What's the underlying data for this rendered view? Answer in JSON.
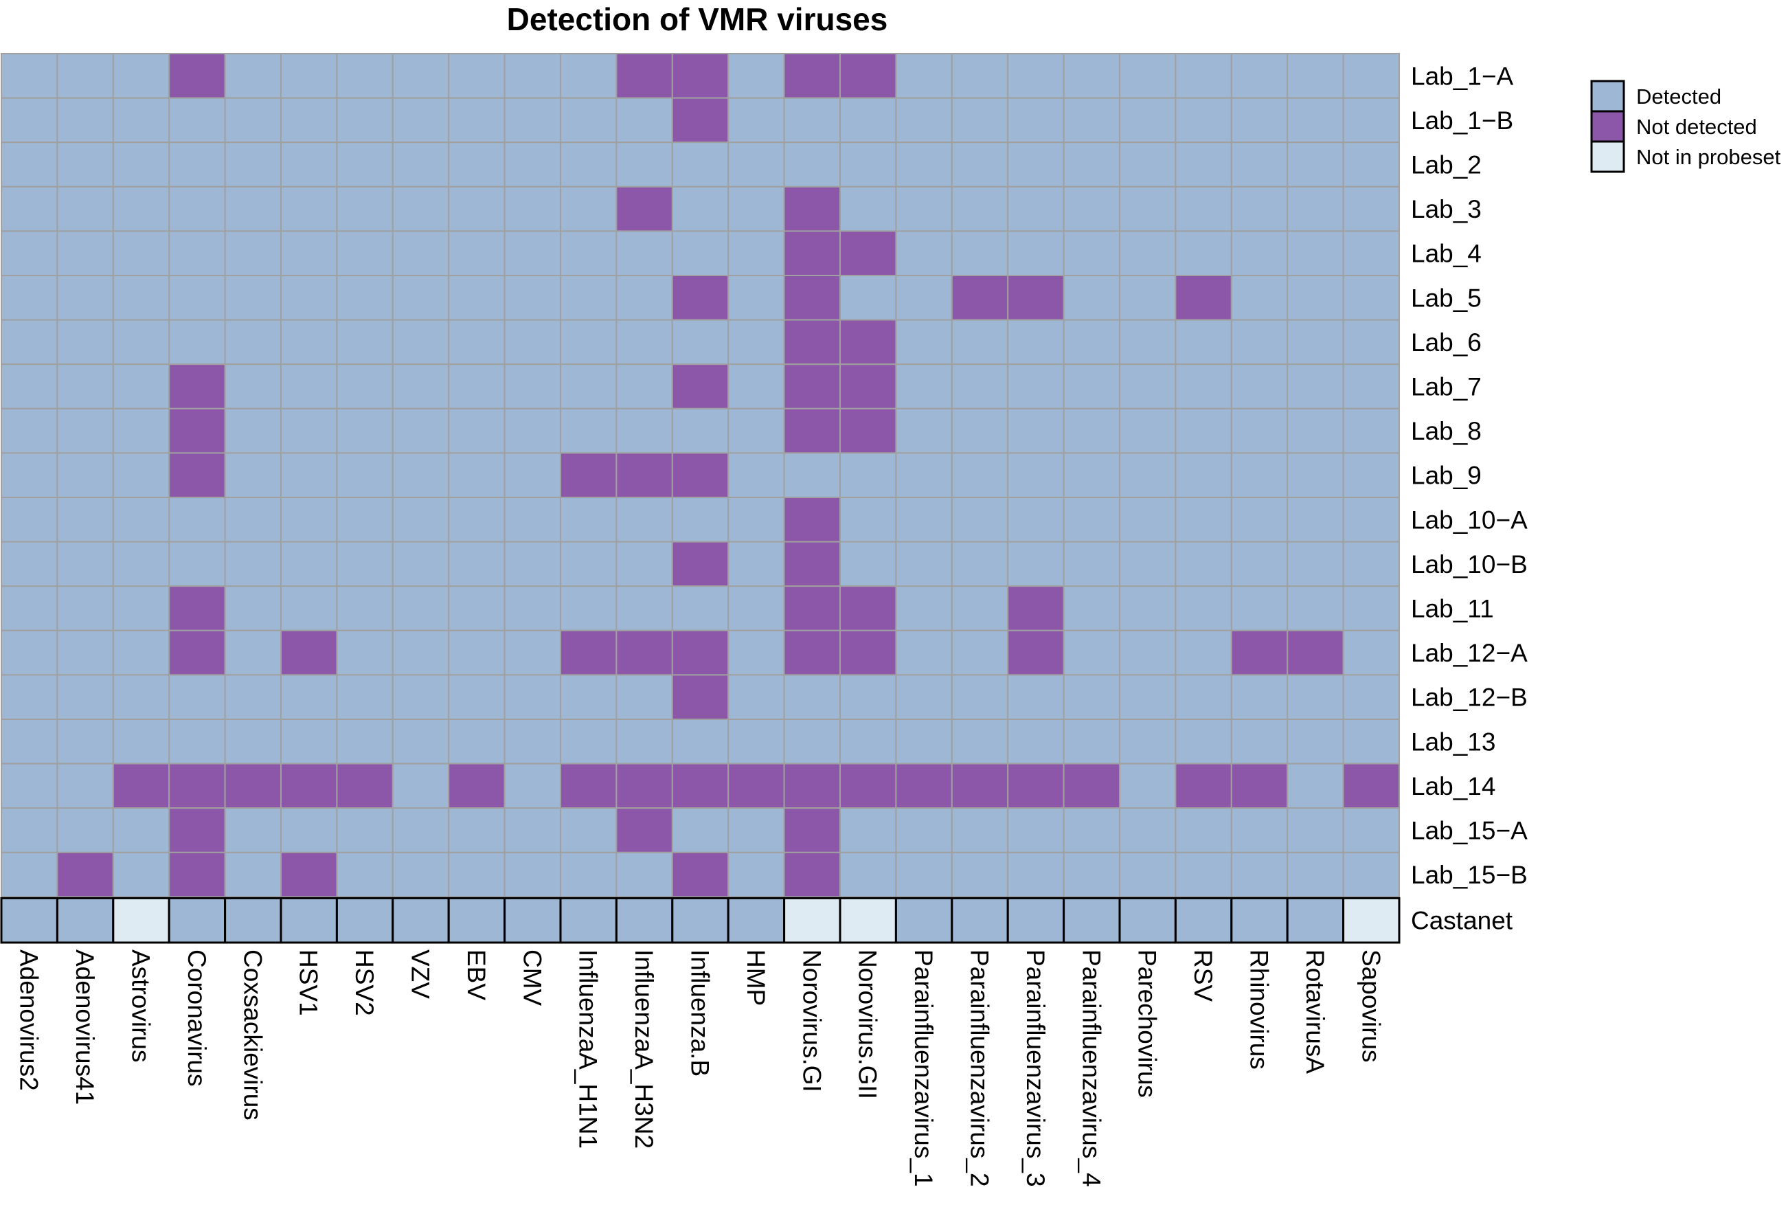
{
  "chart_data": {
    "type": "heatmap",
    "title": "Detection of VMR viruses",
    "columns": [
      "Adenovirus2",
      "Adenovirus41",
      "Astrovirus",
      "Coronavirus",
      "Coxsackievirus",
      "HSV1",
      "HSV2",
      "VZV",
      "EBV",
      "CMV",
      "InfluenzaA_H1N1",
      "InfluenzaA_H3N2",
      "Influenza.B",
      "HMP",
      "Norovirus.GI",
      "Norovirus.GII",
      "Parainfluenzavirus_1",
      "Parainfluenzavirus_2",
      "Parainfluenzavirus_3",
      "Parainfluenzavirus_4",
      "Parechovirus",
      "RSV",
      "Rhinovirus",
      "RotavirusA",
      "Sapovirus"
    ],
    "rows": [
      "Lab_1−A",
      "Lab_1−B",
      "Lab_2",
      "Lab_3",
      "Lab_4",
      "Lab_5",
      "Lab_6",
      "Lab_7",
      "Lab_8",
      "Lab_9",
      "Lab_10−A",
      "Lab_10−B",
      "Lab_11",
      "Lab_12−A",
      "Lab_12−B",
      "Lab_13",
      "Lab_14",
      "Lab_15−A",
      "Lab_15−B"
    ],
    "lab_status": {
      "codes": {
        "D": "Detected",
        "N": "Not detected",
        "P": "Not in probeset"
      },
      "values": [
        "DDDNDDDDDDDNNDNNDDDDDDDDD",
        "DDDDDDDDDDDDNDDDDDDDDDDDD",
        "DDDDDDDDDDDDDDDDDDDDDDDDD",
        "DDDDDDDDDDDNDDNDDDDDDDDDD",
        "DDDDDDDDDDDDDDNNDDDDDDDDD",
        "DDDDDDDDDDDDNDNDDNNDDNDDD",
        "DDDDDDDDDDDDDDNNDDDDDDDDD",
        "DDDNDDDDDDDDNDNNDDDDDDDDD",
        "DDDNDDDDDDDDDDNNDDDDDDDDD",
        "DDDNDDDDDDNNNDDDDDDDDDDDD",
        "DDDDDDDDDDDDDDNDDDDDDDDDD",
        "DDDDDDDDDDDDNDNDDDDDDDDDD",
        "DDDNDDDDDDDDDDNNDDNDDDDDD",
        "DDDNDNDDDDNNNDNNDDNDDDNND",
        "DDDDDDDDDDDDNDDDDDDDDDDDD",
        "DDDDDDDDDDDDDDDDDDDDDDDDD",
        "DDNNNNNDNDNNNNNNNNNNDNNDN",
        "DDDNDDDDDDDNDDNDDDDDDDDDD",
        "DNDNDNDDDDDDNDNDDDDDDDDDD"
      ]
    },
    "reference_row": {
      "label": "Castanet",
      "values": "DDPDDDDDDDDDDDPPDDDDDDDDP"
    },
    "legend": {
      "placement": "top-right",
      "items": [
        {
          "label": "Detected",
          "code": "D"
        },
        {
          "label": "Not detected",
          "code": "N"
        },
        {
          "label": "Not in probeset",
          "code": "P"
        }
      ]
    },
    "colors": {
      "D": "#9db7d5",
      "N": "#8c57a8",
      "P": "#deebf2",
      "grid": "#a0a0a0"
    }
  }
}
